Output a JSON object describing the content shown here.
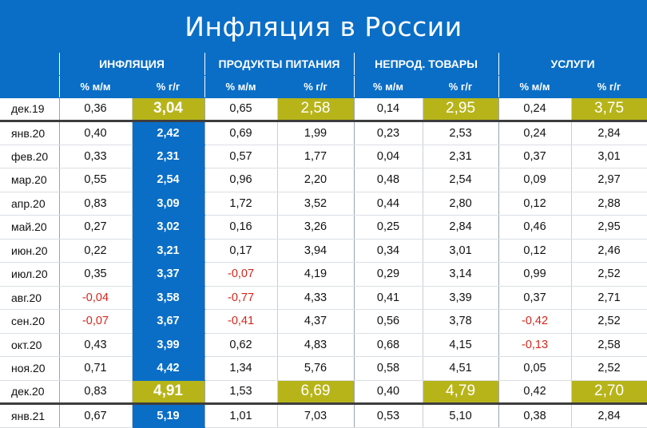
{
  "title": "Инфляция в России",
  "colors": {
    "background": "#0a6ec6",
    "highlight": "#b7b41a",
    "negative": "#d3261c"
  },
  "chart_data": {
    "type": "table",
    "title": "Инфляция в России",
    "groups": [
      "ИНФЛЯЦИЯ",
      "ПРОДУКТЫ ПИТАНИЯ",
      "НЕПРОД. ТОВАРЫ",
      "УСЛУГИ"
    ],
    "subheaders": [
      "% м/м",
      "% г/г",
      "% м/м",
      "% г/г",
      "% м/м",
      "% г/г",
      "% м/м",
      "% г/г"
    ],
    "rows": [
      {
        "month": "дек.19",
        "values": [
          "0,36",
          "3,04",
          "0,65",
          "2,58",
          "0,14",
          "2,95",
          "0,24",
          "3,75"
        ]
      },
      {
        "month": "янв.20",
        "values": [
          "0,40",
          "2,42",
          "0,69",
          "1,99",
          "0,23",
          "2,53",
          "0,24",
          "2,84"
        ]
      },
      {
        "month": "фев.20",
        "values": [
          "0,33",
          "2,31",
          "0,57",
          "1,77",
          "0,04",
          "2,31",
          "0,37",
          "3,01"
        ]
      },
      {
        "month": "мар.20",
        "values": [
          "0,55",
          "2,54",
          "0,96",
          "2,20",
          "0,48",
          "2,54",
          "0,09",
          "2,97"
        ]
      },
      {
        "month": "апр.20",
        "values": [
          "0,83",
          "3,09",
          "1,72",
          "3,52",
          "0,44",
          "2,80",
          "0,12",
          "2,88"
        ]
      },
      {
        "month": "май.20",
        "values": [
          "0,27",
          "3,02",
          "0,16",
          "3,26",
          "0,25",
          "2,84",
          "0,46",
          "2,95"
        ]
      },
      {
        "month": "июн.20",
        "values": [
          "0,22",
          "3,21",
          "0,17",
          "3,94",
          "0,34",
          "3,01",
          "0,12",
          "2,46"
        ]
      },
      {
        "month": "июл.20",
        "values": [
          "0,35",
          "3,37",
          "-0,07",
          "4,19",
          "0,29",
          "3,14",
          "0,99",
          "2,52"
        ]
      },
      {
        "month": "авг.20",
        "values": [
          "-0,04",
          "3,58",
          "-0,77",
          "4,33",
          "0,41",
          "3,39",
          "0,37",
          "2,71"
        ]
      },
      {
        "month": "сен.20",
        "values": [
          "-0,07",
          "3,67",
          "-0,41",
          "4,37",
          "0,56",
          "3,78",
          "-0,42",
          "2,52"
        ]
      },
      {
        "month": "окт.20",
        "values": [
          "0,43",
          "3,99",
          "0,62",
          "4,83",
          "0,68",
          "4,15",
          "-0,13",
          "2,58"
        ]
      },
      {
        "month": "ноя.20",
        "values": [
          "0,71",
          "4,42",
          "1,34",
          "5,76",
          "0,58",
          "4,51",
          "0,05",
          "2,52"
        ]
      },
      {
        "month": "дек.20",
        "values": [
          "0,83",
          "4,91",
          "1,53",
          "6,69",
          "0,40",
          "4,79",
          "0,42",
          "2,70"
        ]
      },
      {
        "month": "янв.21",
        "values": [
          "0,67",
          "5,19",
          "1,01",
          "7,03",
          "0,53",
          "5,10",
          "0,38",
          "2,84"
        ]
      }
    ],
    "highlighted_rows": [
      "дек.19",
      "дек.20"
    ]
  }
}
